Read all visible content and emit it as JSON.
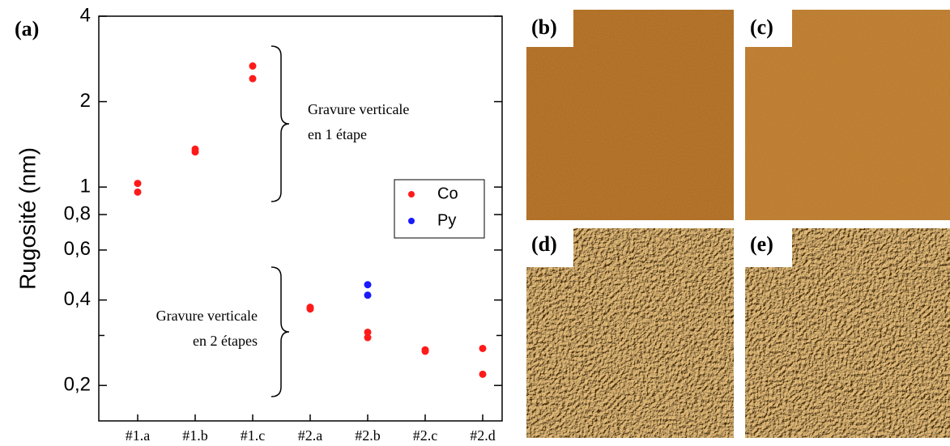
{
  "chart_data": {
    "type": "scatter",
    "ylabel": "Rugosité (nm)",
    "panel_label": "(a)",
    "categories": [
      "#1.a",
      "#1.b",
      "#1.c",
      "#2.a",
      "#2.b",
      "#2.c",
      "#2.d"
    ],
    "series": [
      {
        "name": "Co",
        "color": "#ff1a1a",
        "values": [
          [
            1.03,
            0.96
          ],
          [
            1.36,
            1.33
          ],
          [
            2.67,
            2.41
          ],
          [
            0.377,
            0.372
          ],
          [
            0.308,
            0.295
          ],
          [
            0.267,
            0.264
          ],
          [
            0.27,
            0.219
          ]
        ]
      },
      {
        "name": "Py",
        "color": "#1a1aff",
        "values": [
          null,
          null,
          null,
          null,
          [
            0.453,
            0.416
          ],
          null,
          null
        ]
      }
    ],
    "log_y": true,
    "ylim": [
      0.15,
      4
    ],
    "yticks": [
      {
        "value": 0.2,
        "label": "0,2"
      },
      {
        "value": 0.4,
        "label": "0,4"
      },
      {
        "value": 0.6,
        "label": "0,6"
      },
      {
        "value": 0.8,
        "label": "0,8"
      },
      1,
      2,
      4
    ],
    "yminorticks": [
      0.3
    ],
    "legend": "right",
    "annotations": [
      {
        "lines": [
          "Gravure verticale",
          "en 1 étape"
        ]
      },
      {
        "lines": [
          "Gravure verticale",
          "en 2 étapes"
        ]
      }
    ]
  },
  "panels": [
    {
      "label": "(b)"
    },
    {
      "label": "(c)"
    },
    {
      "label": "(d)"
    },
    {
      "label": "(e)"
    }
  ]
}
